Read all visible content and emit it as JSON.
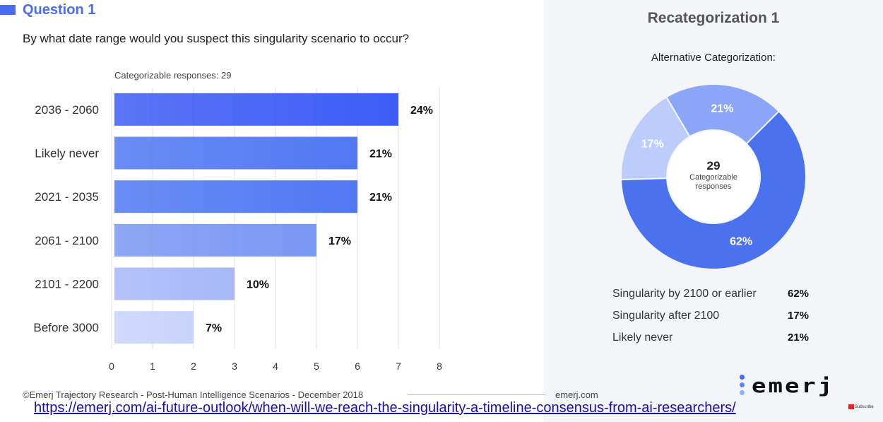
{
  "header": {
    "question_title": "Question 1",
    "question_text": "By what date range would you suspect this singularity scenario to occur?"
  },
  "chart_data": [
    {
      "type": "bar",
      "orientation": "horizontal",
      "subtitle": "Categorizable responses: 29",
      "categories": [
        "2036 - 2060",
        "Likely never",
        "2021 - 2035",
        "2061 - 2100",
        "2101 - 2200",
        "Before 3000"
      ],
      "values": [
        7,
        6,
        6,
        5,
        3,
        2
      ],
      "data_labels": [
        "24%",
        "21%",
        "21%",
        "17%",
        "10%",
        "7%"
      ],
      "xlim": [
        0,
        8
      ],
      "xticks": [
        "0",
        "1",
        "2",
        "3",
        "4",
        "5",
        "6",
        "7",
        "8"
      ],
      "grid": true,
      "colors": [
        "#3d5cf5",
        "#5078f2",
        "#5078f2",
        "#7a97f3",
        "#a6b8f7",
        "#c8d3fa"
      ]
    },
    {
      "type": "pie",
      "donut": true,
      "title": "Recategorization 1",
      "subtitle": "Alternative Categorization:",
      "center_value": "29",
      "center_text": "Categorizable responses",
      "slices": [
        {
          "label": "Singularity by 2100 or earlier",
          "value": 62,
          "display": "62%",
          "color": "#4a72ee"
        },
        {
          "label": "Singularity after 2100",
          "value": 17,
          "display": "17%",
          "color": "#bcccfb"
        },
        {
          "label": "Likely never",
          "value": 21,
          "display": "21%",
          "color": "#8ca6f7"
        }
      ]
    }
  ],
  "footer": {
    "credit": "©Emerj Trajectory Research - Post-Human Intelligence Scenarios -  December 2018",
    "site": "emerj.com",
    "logo_text": "emerj",
    "url": "https://emerj.com/ai-future-outlook/when-will-we-reach-the-singularity-a-timeline-consensus-from-ai-researchers/",
    "subscribe": "Subscribe"
  }
}
